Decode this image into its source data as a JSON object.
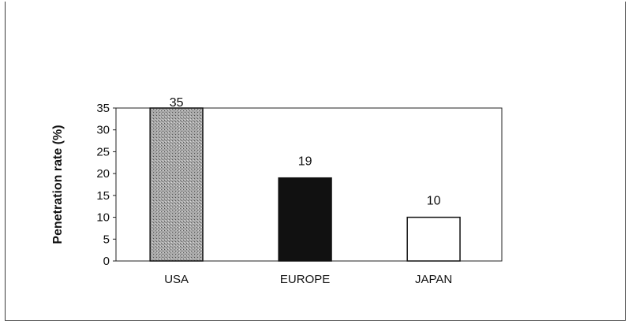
{
  "chart_data": {
    "type": "bar",
    "categories": [
      "USA",
      "EUROPE",
      "JAPAN"
    ],
    "values": [
      35,
      19,
      10
    ],
    "data_labels": [
      "35",
      "19",
      "10"
    ],
    "ylabel": "Penetration rate (%)",
    "xlabel": "",
    "title": "",
    "ylim": [
      0,
      35
    ],
    "yticks": [
      "0",
      "5",
      "10",
      "15",
      "20",
      "25",
      "30",
      "35"
    ],
    "grid": false,
    "bar_fills": [
      "#9a9a9a",
      "#111111",
      "#ffffff"
    ],
    "legend": "none"
  }
}
